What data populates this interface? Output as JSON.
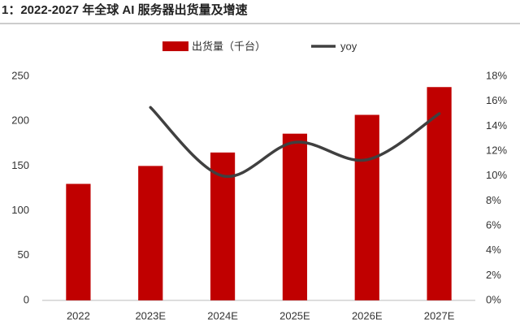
{
  "chart_data": {
    "type": "bar",
    "title": "1：2022-2027 年全球 AI 服务器出货量及增速",
    "categories": [
      "2022",
      "2023E",
      "2024E",
      "2025E",
      "2026E",
      "2027E"
    ],
    "series": [
      {
        "name": "出货量（千台）",
        "type": "bar",
        "color": "#c00000",
        "values": [
          130,
          150,
          165,
          186,
          207,
          238
        ]
      },
      {
        "name": "yoy",
        "type": "line",
        "axis": "y2",
        "color": "#404040",
        "values": [
          null,
          15.5,
          10.0,
          12.7,
          11.3,
          15.0
        ]
      }
    ],
    "ylim": [
      0,
      250
    ],
    "yticks": [
      0,
      50,
      100,
      150,
      200,
      250
    ],
    "y2lim": [
      0,
      18
    ],
    "y2ticks": [
      {
        "value": 0,
        "label": "0%"
      },
      {
        "value": 2,
        "label": "2%"
      },
      {
        "value": 4,
        "label": "4%"
      },
      {
        "value": 6,
        "label": "6%"
      },
      {
        "value": 8,
        "label": "8%"
      },
      {
        "value": 10,
        "label": "10%"
      },
      {
        "value": 12,
        "label": "12%"
      },
      {
        "value": 14,
        "label": "14%"
      },
      {
        "value": 16,
        "label": "16%"
      },
      {
        "value": 18,
        "label": "18%"
      }
    ],
    "grid": false
  }
}
